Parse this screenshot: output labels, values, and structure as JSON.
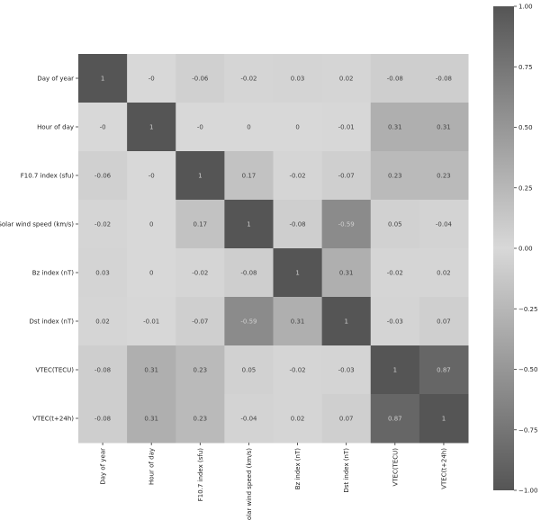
{
  "chart_data": {
    "type": "heatmap",
    "title": "",
    "xlabel": "",
    "ylabel": "",
    "labels": [
      "Day of year",
      "Hour of day",
      "F10.7 index (sfu)",
      "Solar wind speed (km/s)",
      "Bz index (nT)",
      "Dst index (nT)",
      "VTEC(TECU)",
      "VTEC(t+24h)"
    ],
    "matrix": [
      [
        1,
        0,
        -0.06,
        -0.02,
        0.03,
        0.02,
        -0.08,
        -0.08
      ],
      [
        0,
        1,
        0,
        0,
        0,
        -0.01,
        0.31,
        0.31
      ],
      [
        -0.06,
        0,
        1,
        0.17,
        -0.02,
        -0.07,
        0.23,
        0.23
      ],
      [
        -0.02,
        0,
        0.17,
        1,
        -0.08,
        -0.59,
        0.05,
        -0.04
      ],
      [
        0.03,
        0,
        -0.02,
        -0.08,
        1,
        0.31,
        -0.02,
        0.02
      ],
      [
        0.02,
        -0.01,
        -0.07,
        -0.59,
        0.31,
        1,
        -0.03,
        0.07
      ],
      [
        -0.08,
        0.31,
        0.23,
        0.05,
        -0.02,
        -0.03,
        1,
        0.87
      ],
      [
        -0.08,
        0.31,
        0.23,
        -0.04,
        0.02,
        0.07,
        0.87,
        1
      ]
    ],
    "colorbar": {
      "range": [
        -1,
        1
      ],
      "ticks": [
        "1.00",
        "0.75",
        "0.50",
        "0.25",
        "0.00",
        "−0.25",
        "−0.50",
        "−0.75",
        "−1.00"
      ]
    },
    "colors": {
      "high": "#555555",
      "mid": "#d8d8d8",
      "low": "#555555",
      "text_on_light": "#444444",
      "text_on_dark": "#d0d0d0"
    },
    "grid": false,
    "legend": "colorbar-right"
  }
}
